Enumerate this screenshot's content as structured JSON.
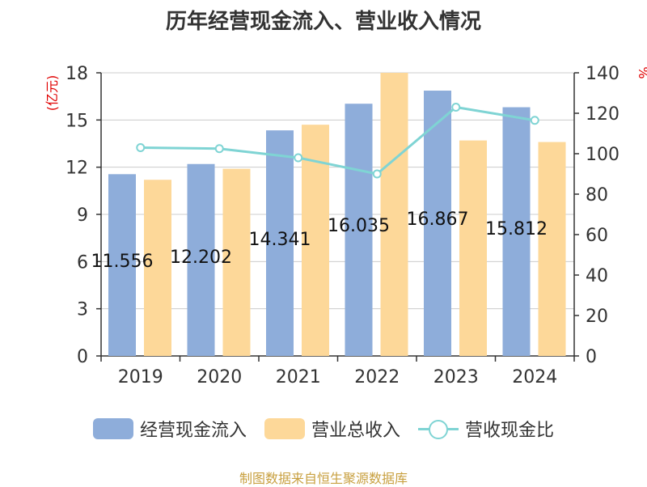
{
  "colors": {
    "bar1": "#8eadda",
    "bar2": "#fdd899",
    "line": "#7fd4d4",
    "title": "#333333",
    "unit": "#e00000",
    "source": "#c8a040"
  },
  "legend": {
    "series1": "经营现金流入",
    "series2": "营业总收入",
    "series3": "营收现金比"
  },
  "source_note": "制图数据来自恒生聚源数据库",
  "chart_data": {
    "type": "bar",
    "title": "历年经营现金流入、营业收入情况",
    "categories": [
      "2019",
      "2020",
      "2021",
      "2022",
      "2023",
      "2024"
    ],
    "ylabel": "(亿元)",
    "y2label": "%",
    "ylim": [
      0,
      18
    ],
    "y2lim": [
      0,
      140
    ],
    "yticks": [
      0,
      3,
      6,
      9,
      12,
      15,
      18
    ],
    "y2ticks": [
      0,
      20,
      40,
      60,
      80,
      100,
      120,
      140
    ],
    "grid": true,
    "legend_position": "bottom",
    "series": [
      {
        "name": "经营现金流入",
        "type": "bar",
        "axis": "left",
        "values": [
          11.556,
          12.202,
          14.341,
          16.035,
          16.867,
          15.812
        ],
        "data_labels": [
          "11.556",
          "12.202",
          "14.341",
          "16.035",
          "16.867",
          "15.812"
        ]
      },
      {
        "name": "营业总收入",
        "type": "bar",
        "axis": "left",
        "values": [
          11.2,
          11.9,
          14.7,
          18.0,
          13.7,
          13.6
        ]
      },
      {
        "name": "营收现金比",
        "type": "line",
        "axis": "right",
        "values": [
          103,
          102.5,
          98,
          90,
          123,
          116.5
        ]
      }
    ]
  }
}
